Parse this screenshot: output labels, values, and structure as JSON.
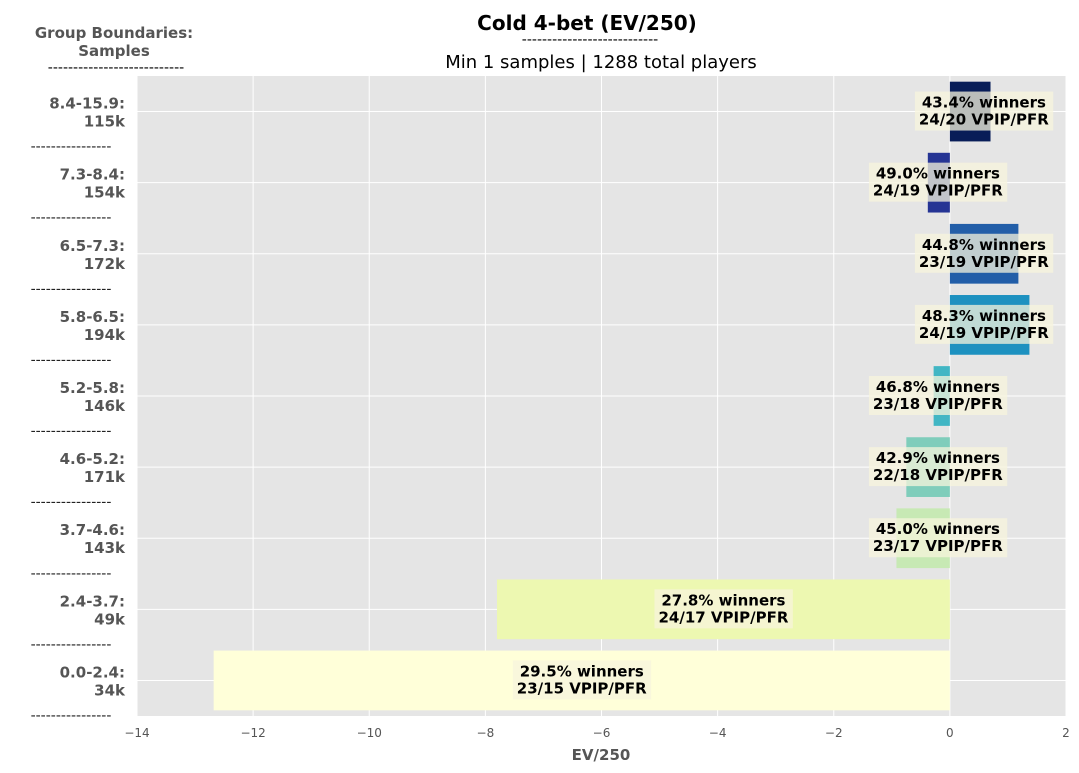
{
  "chart_data": {
    "type": "bar",
    "orientation": "horizontal",
    "title": "Cold 4-bet (EV/250)",
    "title_underline": "---------------------------",
    "subtitle": "Min 1 samples | 1288 total players",
    "group_header": [
      "Group Boundaries:",
      "Samples"
    ],
    "group_header_underline": "---------------------------",
    "separator": "----------------",
    "xlabel": "EV/250",
    "xlim": [
      -14,
      2
    ],
    "xticks": [
      -14,
      -12,
      -10,
      -8,
      -6,
      -4,
      -2,
      0,
      2
    ],
    "xtick_labels": [
      "−14",
      "−12",
      "−10",
      "−8",
      "−6",
      "−4",
      "−2",
      "0",
      "2"
    ],
    "grid": true,
    "colors": {
      "plot_background": "#e5e5e5",
      "grid": "#ffffff",
      "label_box": "#f7f4dc"
    },
    "categories": [
      {
        "range": "8.4-15.9:",
        "samples": "115k",
        "value": 0.7,
        "color": "#081d58",
        "winners": "43.4% winners",
        "vpip_pfr": "24/20 VPIP/PFR"
      },
      {
        "range": "7.3-8.4:",
        "samples": "154k",
        "value": -0.38,
        "color": "#253494",
        "winners": "49.0% winners",
        "vpip_pfr": "24/19 VPIP/PFR"
      },
      {
        "range": "6.5-7.3:",
        "samples": "172k",
        "value": 1.18,
        "color": "#225ea8",
        "winners": "44.8% winners",
        "vpip_pfr": "23/19 VPIP/PFR"
      },
      {
        "range": "5.8-6.5:",
        "samples": "194k",
        "value": 1.37,
        "color": "#1d91c0",
        "winners": "48.3% winners",
        "vpip_pfr": "24/19 VPIP/PFR"
      },
      {
        "range": "5.2-5.8:",
        "samples": "146k",
        "value": -0.28,
        "color": "#41b6c4",
        "winners": "46.8% winners",
        "vpip_pfr": "23/18 VPIP/PFR"
      },
      {
        "range": "4.6-5.2:",
        "samples": "171k",
        "value": -0.75,
        "color": "#7fcdbb",
        "winners": "42.9% winners",
        "vpip_pfr": "22/18 VPIP/PFR"
      },
      {
        "range": "3.7-4.6:",
        "samples": "143k",
        "value": -0.92,
        "color": "#c7e9b4",
        "winners": "45.0% winners",
        "vpip_pfr": "23/17 VPIP/PFR"
      },
      {
        "range": "2.4-3.7:",
        "samples": "49k",
        "value": -7.8,
        "color": "#edf8b1",
        "winners": "27.8% winners",
        "vpip_pfr": "24/17 VPIP/PFR"
      },
      {
        "range": "0.0-2.4:",
        "samples": "34k",
        "value": -12.68,
        "color": "#ffffd9",
        "winners": "29.5% winners",
        "vpip_pfr": "23/15 VPIP/PFR"
      }
    ]
  }
}
